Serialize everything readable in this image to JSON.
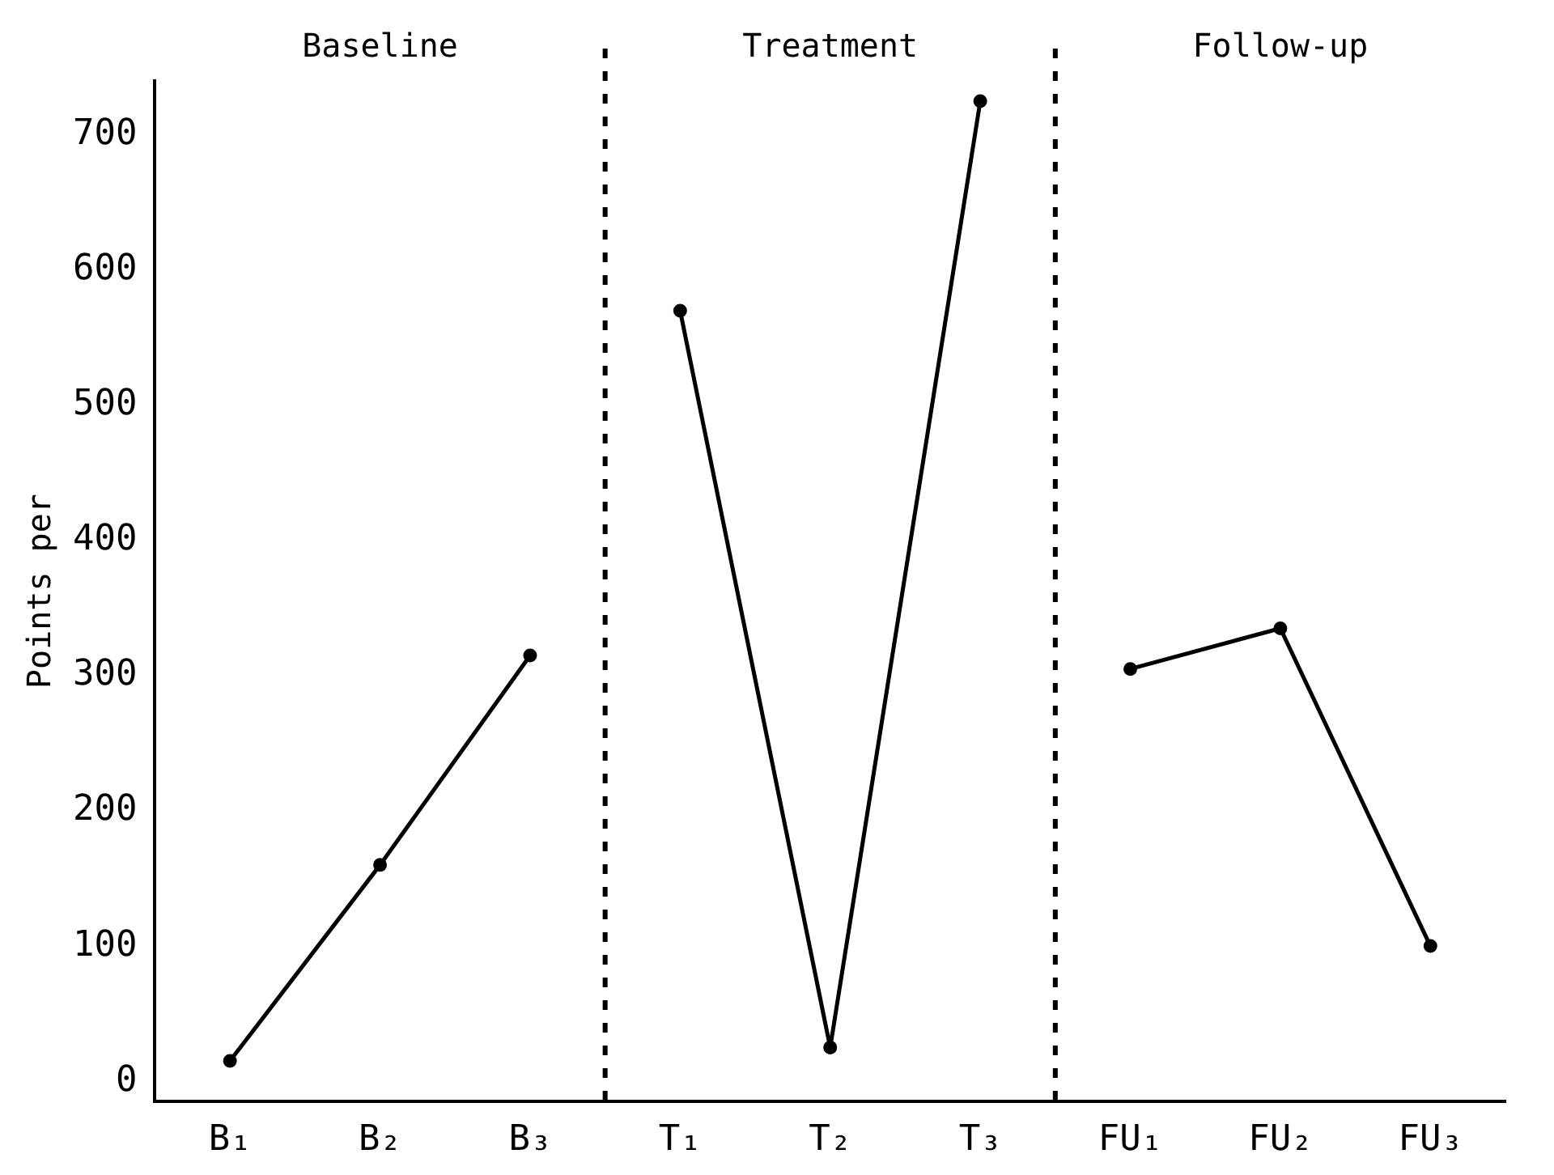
{
  "chart_data": {
    "type": "line",
    "ylabel": "Points per",
    "categories": [
      "B₁",
      "B₂",
      "B₃",
      "T₁",
      "T₂",
      "T₃",
      "FU₁",
      "FU₂",
      "FU₃"
    ],
    "series": [
      {
        "color": "#000000",
        "values": [
          15,
          160,
          315,
          null,
          null,
          null,
          null,
          null,
          null
        ]
      },
      {
        "color": "#000000",
        "values": [
          null,
          null,
          null,
          570,
          25,
          725,
          null,
          null,
          null
        ]
      },
      {
        "color": "#000000",
        "values": [
          null,
          null,
          null,
          null,
          null,
          null,
          305,
          335,
          100
        ]
      }
    ],
    "ylim": [
      -15,
      740
    ],
    "yticks": [
      0,
      100,
      200,
      300,
      400,
      500,
      600,
      700
    ],
    "annotations": [
      "Baseline",
      "Treatment",
      "Follow-up"
    ],
    "grid": false,
    "legend": false,
    "marker": "circle",
    "line_style": "solid"
  }
}
